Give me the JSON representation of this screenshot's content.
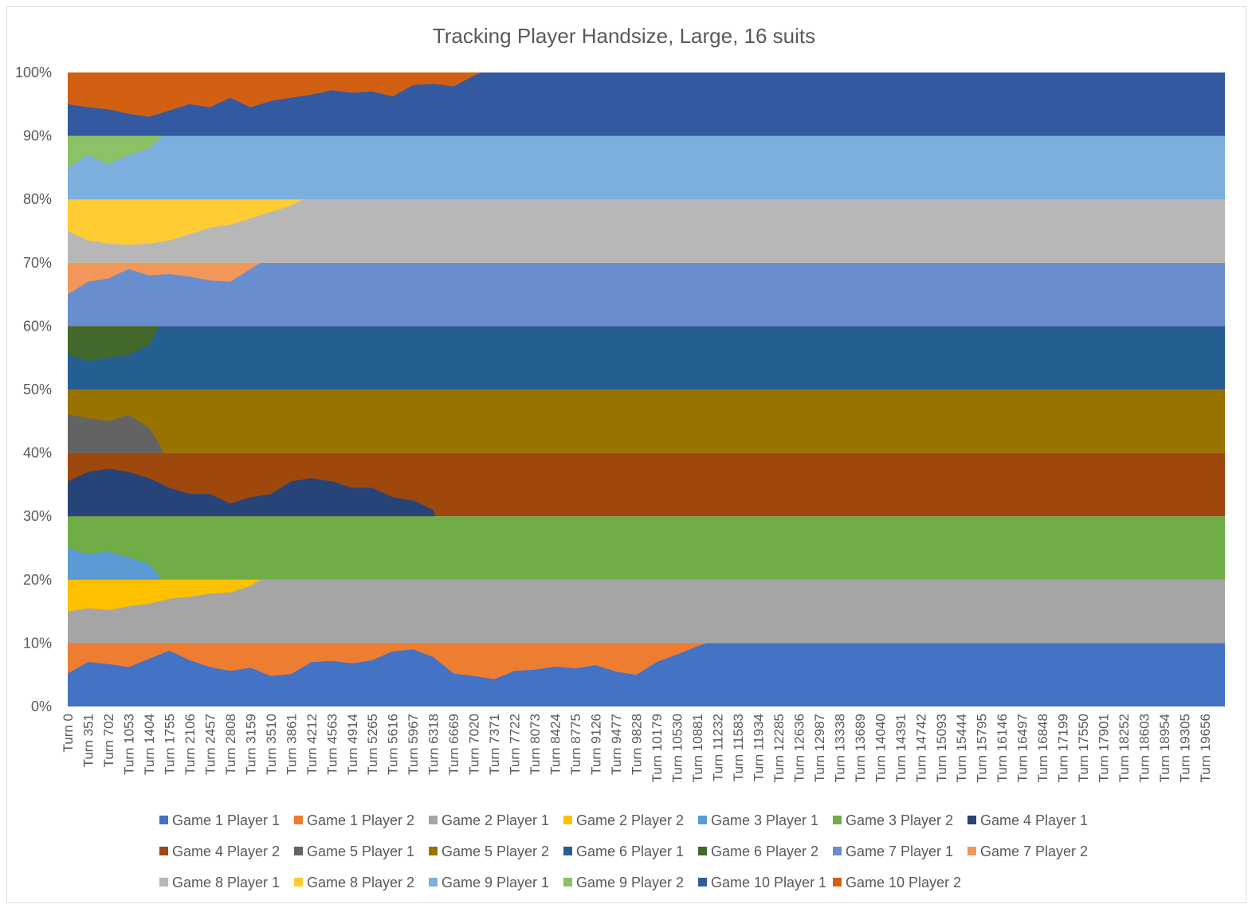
{
  "chart_data": {
    "type": "area",
    "stacking": "percent",
    "title": "Tracking Player Handsize, Large, 16 suits",
    "xlabel": "",
    "ylabel": "",
    "ylim": [
      0,
      100
    ],
    "yticks": [
      "0%",
      "10%",
      "20%",
      "30%",
      "40%",
      "50%",
      "60%",
      "70%",
      "80%",
      "90%",
      "100%"
    ],
    "x_range": [
      0,
      20000
    ],
    "xticks": [
      0,
      351,
      702,
      1053,
      1404,
      1755,
      2106,
      2457,
      2808,
      3159,
      3510,
      3861,
      4212,
      4563,
      4914,
      5265,
      5616,
      5967,
      6318,
      6669,
      7020,
      7371,
      7722,
      8073,
      8424,
      8775,
      9126,
      9477,
      9828,
      10179,
      10530,
      10881,
      11232,
      11583,
      11934,
      12285,
      12636,
      12987,
      13338,
      13689,
      14040,
      14391,
      14742,
      15093,
      15444,
      15795,
      16146,
      16497,
      16848,
      17199,
      17550,
      17901,
      18252,
      18603,
      18954,
      19305,
      19656
    ],
    "xtick_prefix": "Turn ",
    "legend_position": "bottom",
    "games": [
      {
        "p1": "Game 1 Player 1",
        "p2": "Game 1 Player 2",
        "c1": "#4472C4",
        "c2": "#ED7D31",
        "x": [
          0,
          351,
          702,
          1053,
          1404,
          1755,
          2106,
          2457,
          2808,
          3159,
          3510,
          3861,
          4212,
          4563,
          4914,
          5265,
          5616,
          5967,
          6318,
          6669,
          7020,
          7371,
          7722,
          8073,
          8424,
          8775,
          9126,
          9477,
          9828,
          10179,
          10530,
          10881,
          11050
        ],
        "share": [
          52,
          70,
          67,
          62,
          75,
          88,
          73,
          62,
          56,
          61,
          48,
          51,
          70,
          72,
          68,
          73,
          87,
          90,
          78,
          52,
          48,
          43,
          56,
          58,
          63,
          60,
          65,
          55,
          50,
          70,
          82,
          95,
          100
        ]
      },
      {
        "p1": "Game 2 Player 1",
        "p2": "Game 2 Player 2",
        "c1": "#A5A5A5",
        "c2": "#FFC000",
        "x": [
          0,
          351,
          702,
          1053,
          1404,
          1755,
          2106,
          2457,
          2808,
          3159,
          3330
        ],
        "share": [
          50,
          55,
          52,
          58,
          62,
          70,
          73,
          78,
          80,
          90,
          100
        ]
      },
      {
        "p1": "Game 3 Player 1",
        "p2": "Game 3 Player 2",
        "c1": "#5B9BD5",
        "c2": "#70AD47",
        "x": [
          0,
          351,
          702,
          1053,
          1404,
          1550,
          1600
        ],
        "share": [
          50,
          40,
          45,
          35,
          25,
          10,
          0
        ]
      },
      {
        "p1": "Game 4 Player 1",
        "p2": "Game 4 Player 2",
        "c1": "#264478",
        "c2": "#9E480E",
        "x": [
          0,
          351,
          702,
          1053,
          1404,
          1755,
          2106,
          2457,
          2808,
          3159,
          3510,
          3861,
          4212,
          4563,
          4914,
          5265,
          5616,
          5967,
          6318,
          6350
        ],
        "share": [
          55,
          70,
          75,
          70,
          60,
          45,
          35,
          35,
          20,
          30,
          35,
          55,
          60,
          55,
          45,
          45,
          30,
          25,
          10,
          0
        ]
      },
      {
        "p1": "Game 5 Player 1",
        "p2": "Game 5 Player 2",
        "c1": "#636363",
        "c2": "#997300",
        "x": [
          0,
          351,
          702,
          1053,
          1404,
          1580,
          1650
        ],
        "share": [
          60,
          55,
          50,
          60,
          40,
          15,
          0
        ]
      },
      {
        "p1": "Game 6 Player 1",
        "p2": "Game 6 Player 2",
        "c1": "#255E91",
        "c2": "#43682B",
        "x": [
          0,
          351,
          702,
          1053,
          1404,
          1555,
          1590
        ],
        "share": [
          55,
          45,
          50,
          55,
          70,
          95,
          100
        ]
      },
      {
        "p1": "Game 7 Player 1",
        "p2": "Game 7 Player 2",
        "c1": "#698ED0",
        "c2": "#F1975A",
        "x": [
          0,
          351,
          702,
          1053,
          1404,
          1755,
          2106,
          2457,
          2808,
          3159,
          3340
        ],
        "share": [
          50,
          70,
          75,
          90,
          80,
          82,
          78,
          72,
          70,
          90,
          100
        ]
      },
      {
        "p1": "Game 8 Player 1",
        "p2": "Game 8 Player 2",
        "c1": "#B7B7B7",
        "c2": "#FFCD33",
        "x": [
          0,
          351,
          702,
          1053,
          1404,
          1755,
          2106,
          2457,
          2808,
          3159,
          3510,
          3861,
          4070
        ],
        "share": [
          50,
          35,
          30,
          28,
          30,
          35,
          45,
          55,
          60,
          70,
          80,
          90,
          100
        ]
      },
      {
        "p1": "Game 9 Player 1",
        "p2": "Game 9 Player 2",
        "c1": "#7CAFDD",
        "c2": "#8CC168",
        "x": [
          0,
          351,
          702,
          1053,
          1404,
          1580,
          1650
        ],
        "share": [
          50,
          70,
          55,
          70,
          80,
          95,
          100
        ]
      },
      {
        "p1": "Game 10 Player 1",
        "p2": "Game 10 Player 2",
        "c1": "#335AA1",
        "c2": "#D26012",
        "x": [
          0,
          351,
          702,
          1053,
          1404,
          1755,
          2106,
          2457,
          2808,
          3159,
          3510,
          3861,
          4212,
          4563,
          4914,
          5265,
          5616,
          5967,
          6318,
          6669,
          7020,
          7160
        ],
        "share": [
          50,
          45,
          42,
          35,
          30,
          40,
          50,
          45,
          60,
          45,
          55,
          60,
          65,
          72,
          68,
          70,
          62,
          80,
          82,
          78,
          95,
          100
        ]
      }
    ]
  }
}
